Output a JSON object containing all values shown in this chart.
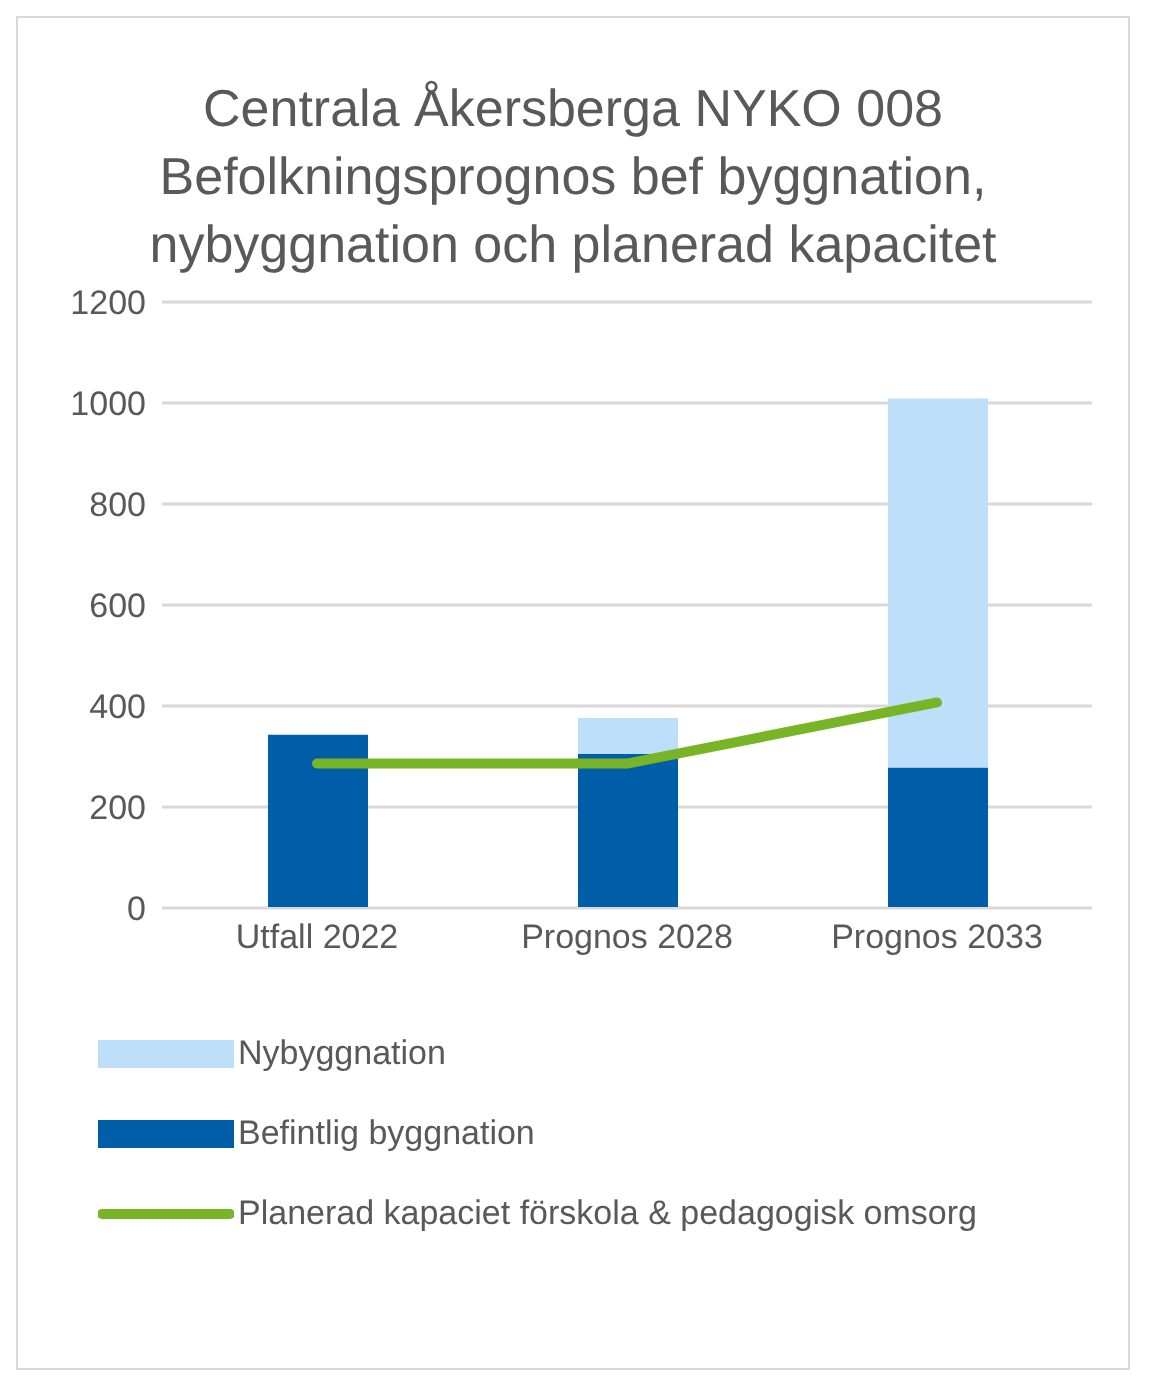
{
  "chart_data": {
    "type": "bar",
    "title": "Centrala Åkersberga NYKO 008 Befolkningsprognos bef byggnation, nybyggnation och planerad kapacitet",
    "categories": [
      "Utfall 2022",
      "Prognos 2028",
      "Prognos 2033"
    ],
    "series": [
      {
        "name": "Befintlig byggnation",
        "color": "#005ea8",
        "values": [
          343,
          305,
          278
        ]
      },
      {
        "name": "Nybyggnation",
        "color": "#bddff9",
        "values": [
          0,
          71,
          731
        ]
      },
      {
        "name": "Planerad kapaciet förskola & pedagogisk omsorg",
        "type": "line",
        "color": "#78b526",
        "values": [
          286,
          286,
          407
        ]
      }
    ],
    "stacked": true,
    "ylim": [
      0,
      1200
    ],
    "yticks": [
      0,
      200,
      400,
      600,
      800,
      1000,
      1200
    ],
    "grid": "y",
    "legend": "bottom",
    "marker": "none",
    "line_style": "solid"
  }
}
